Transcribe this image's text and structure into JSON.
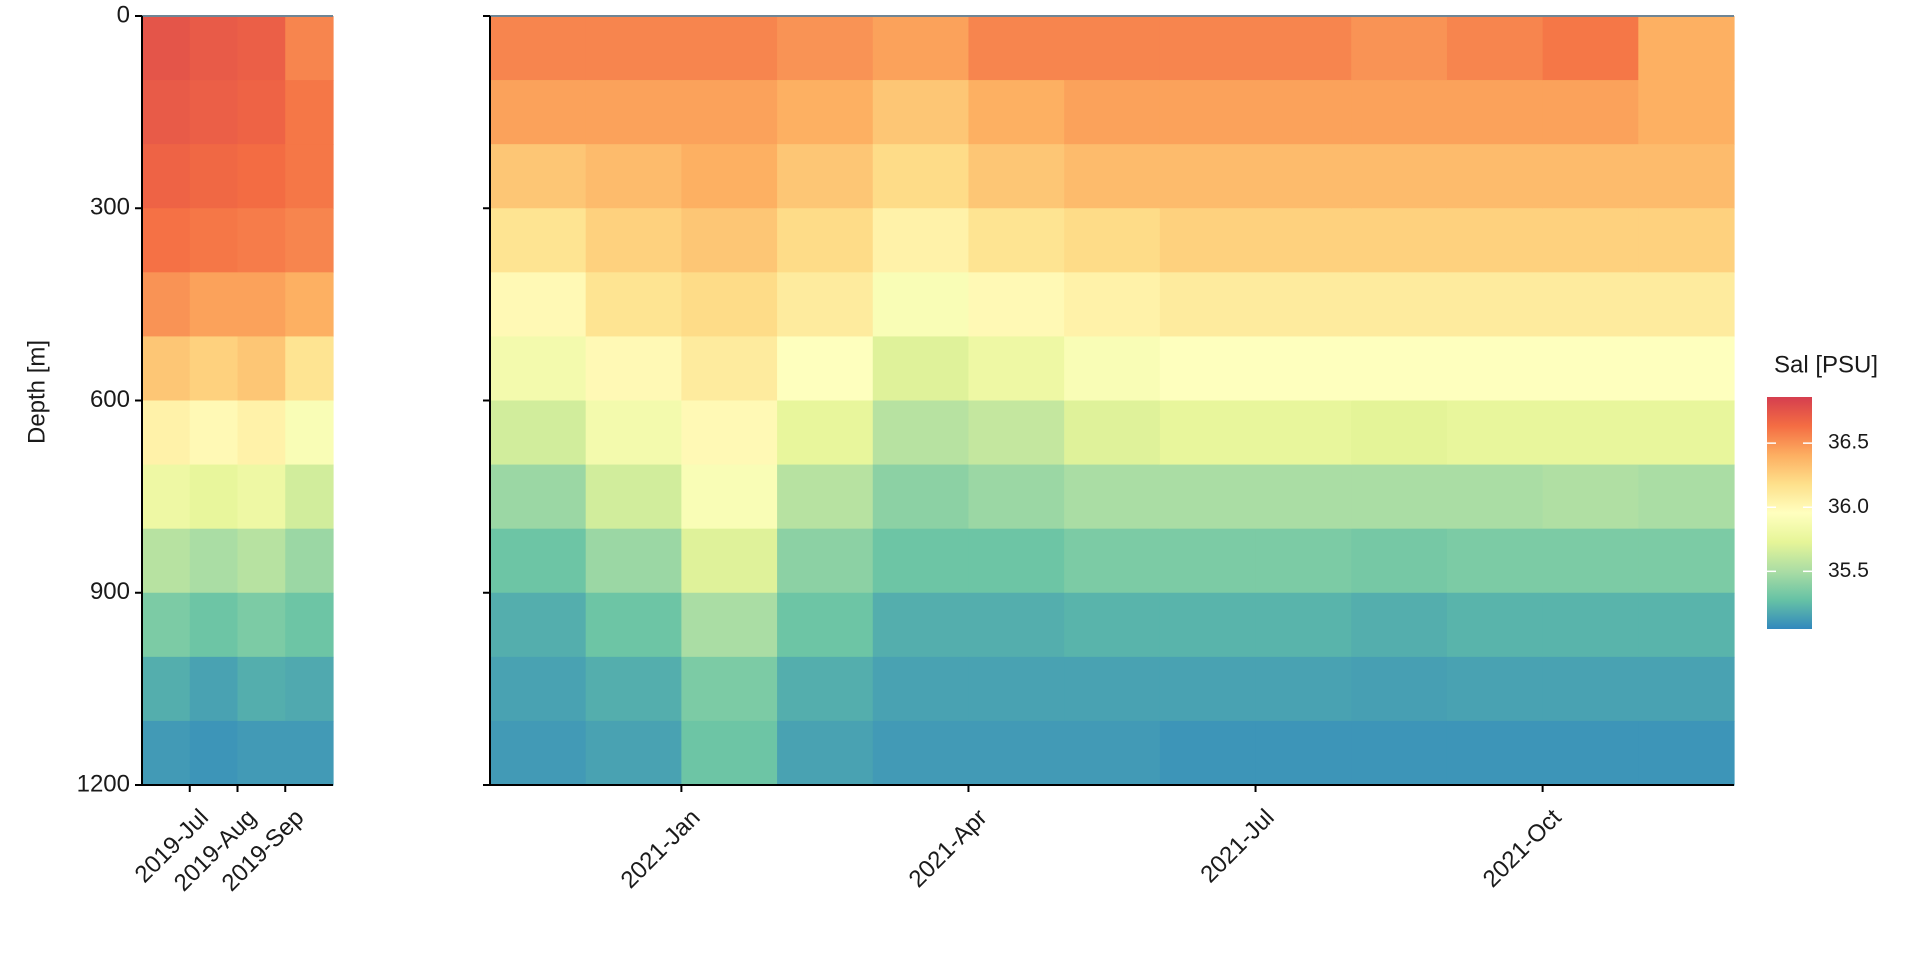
{
  "chart_data": [
    {
      "type": "heatmap",
      "y_label": "Depth [m]",
      "x": [
        "2019-06",
        "2019-07",
        "2019-08",
        "2019-09"
      ],
      "y": [
        50,
        150,
        250,
        350,
        450,
        550,
        650,
        750,
        850,
        950,
        1050,
        1150
      ],
      "z": [
        [
          36.75,
          36.72,
          36.68,
          36.62,
          36.5,
          36.3,
          36.05,
          35.8,
          35.55,
          35.35,
          35.2,
          35.12
        ],
        [
          36.72,
          36.7,
          36.66,
          36.6,
          36.45,
          36.25,
          36.0,
          35.75,
          35.5,
          35.3,
          35.15,
          35.1
        ],
        [
          36.7,
          36.68,
          36.64,
          36.58,
          36.45,
          36.3,
          36.05,
          35.8,
          35.55,
          35.35,
          35.2,
          35.12
        ],
        [
          36.55,
          36.6,
          36.6,
          36.55,
          36.4,
          36.15,
          35.9,
          35.65,
          35.45,
          35.3,
          35.18,
          35.12
        ]
      ],
      "xlim": [
        "2019-06",
        "2019-10"
      ],
      "xticks": [
        {
          "value": "2019-07",
          "label": "2019-Jul"
        },
        {
          "value": "2019-08",
          "label": "2019-Aug"
        },
        {
          "value": "2019-09",
          "label": "2019-Sep"
        }
      ],
      "ylim": [
        0,
        1200
      ],
      "yticks": [
        0,
        300,
        600,
        900,
        1200
      ],
      "y_reversed": true,
      "ytick_labels": true
    },
    {
      "type": "heatmap",
      "x": [
        "2020-11",
        "2020-12",
        "2021-01",
        "2021-02",
        "2021-03",
        "2021-04",
        "2021-05",
        "2021-06",
        "2021-07",
        "2021-08",
        "2021-09",
        "2021-10",
        "2021-11"
      ],
      "y": [
        50,
        150,
        250,
        350,
        450,
        550,
        650,
        750,
        850,
        950,
        1050,
        1150
      ],
      "z": [
        [
          36.55,
          36.45,
          36.3,
          36.15,
          36.0,
          35.85,
          35.65,
          35.45,
          35.3,
          35.2,
          35.15,
          35.12
        ],
        [
          36.55,
          36.45,
          36.35,
          36.25,
          36.15,
          36.0,
          35.85,
          35.65,
          35.45,
          35.3,
          35.2,
          35.15
        ],
        [
          36.55,
          36.45,
          36.4,
          36.3,
          36.2,
          36.1,
          36.0,
          35.9,
          35.7,
          35.5,
          35.35,
          35.3
        ],
        [
          36.5,
          36.4,
          36.3,
          36.2,
          36.1,
          35.95,
          35.75,
          35.55,
          35.4,
          35.3,
          35.2,
          35.15
        ],
        [
          36.45,
          36.3,
          36.2,
          36.05,
          35.9,
          35.7,
          35.55,
          35.4,
          35.3,
          35.2,
          35.15,
          35.12
        ],
        [
          36.55,
          36.4,
          36.3,
          36.15,
          36.0,
          35.8,
          35.6,
          35.45,
          35.3,
          35.2,
          35.15,
          35.12
        ],
        [
          36.55,
          36.45,
          36.35,
          36.2,
          36.05,
          35.9,
          35.7,
          35.5,
          35.35,
          35.22,
          35.15,
          35.12
        ],
        [
          36.55,
          36.45,
          36.35,
          36.25,
          36.1,
          35.95,
          35.75,
          35.5,
          35.35,
          35.22,
          35.15,
          35.1
        ],
        [
          36.55,
          36.45,
          36.35,
          36.25,
          36.1,
          35.95,
          35.75,
          35.5,
          35.35,
          35.22,
          35.15,
          35.1
        ],
        [
          36.5,
          36.45,
          36.35,
          36.25,
          36.1,
          35.95,
          35.72,
          35.5,
          35.33,
          35.2,
          35.14,
          35.1
        ],
        [
          36.55,
          36.45,
          36.35,
          36.25,
          36.1,
          35.95,
          35.75,
          35.5,
          35.35,
          35.22,
          35.15,
          35.1
        ],
        [
          36.6,
          36.45,
          36.35,
          36.25,
          36.1,
          35.95,
          35.75,
          35.52,
          35.35,
          35.22,
          35.15,
          35.1
        ],
        [
          36.4,
          36.4,
          36.35,
          36.25,
          36.1,
          35.95,
          35.75,
          35.5,
          35.35,
          35.22,
          35.15,
          35.1
        ]
      ],
      "xlim": [
        "2020-11",
        "2021-12"
      ],
      "xticks": [
        {
          "value": "2021-01",
          "label": "2021-Jan"
        },
        {
          "value": "2021-04",
          "label": "2021-Apr"
        },
        {
          "value": "2021-07",
          "label": "2021-Jul"
        },
        {
          "value": "2021-10",
          "label": "2021-Oct"
        }
      ],
      "ylim": [
        0,
        1200
      ],
      "yticks": [
        0,
        300,
        600,
        900,
        1200
      ],
      "y_reversed": true,
      "ytick_labels": false,
      "colorbar": {
        "title": "Sal [PSU]",
        "zlim": [
          35.05,
          36.86
        ],
        "zticks": [
          35.5,
          {
            "value": 36,
            "label": "36.0"
          },
          36.5
        ],
        "colors": [
          "#3288bd",
          "#66c2a5",
          "#abdda4",
          "#e6f598",
          "#ffffbf",
          "#fee08b",
          "#fdae61",
          "#f46d43",
          "#d53e4f"
        ]
      }
    }
  ]
}
